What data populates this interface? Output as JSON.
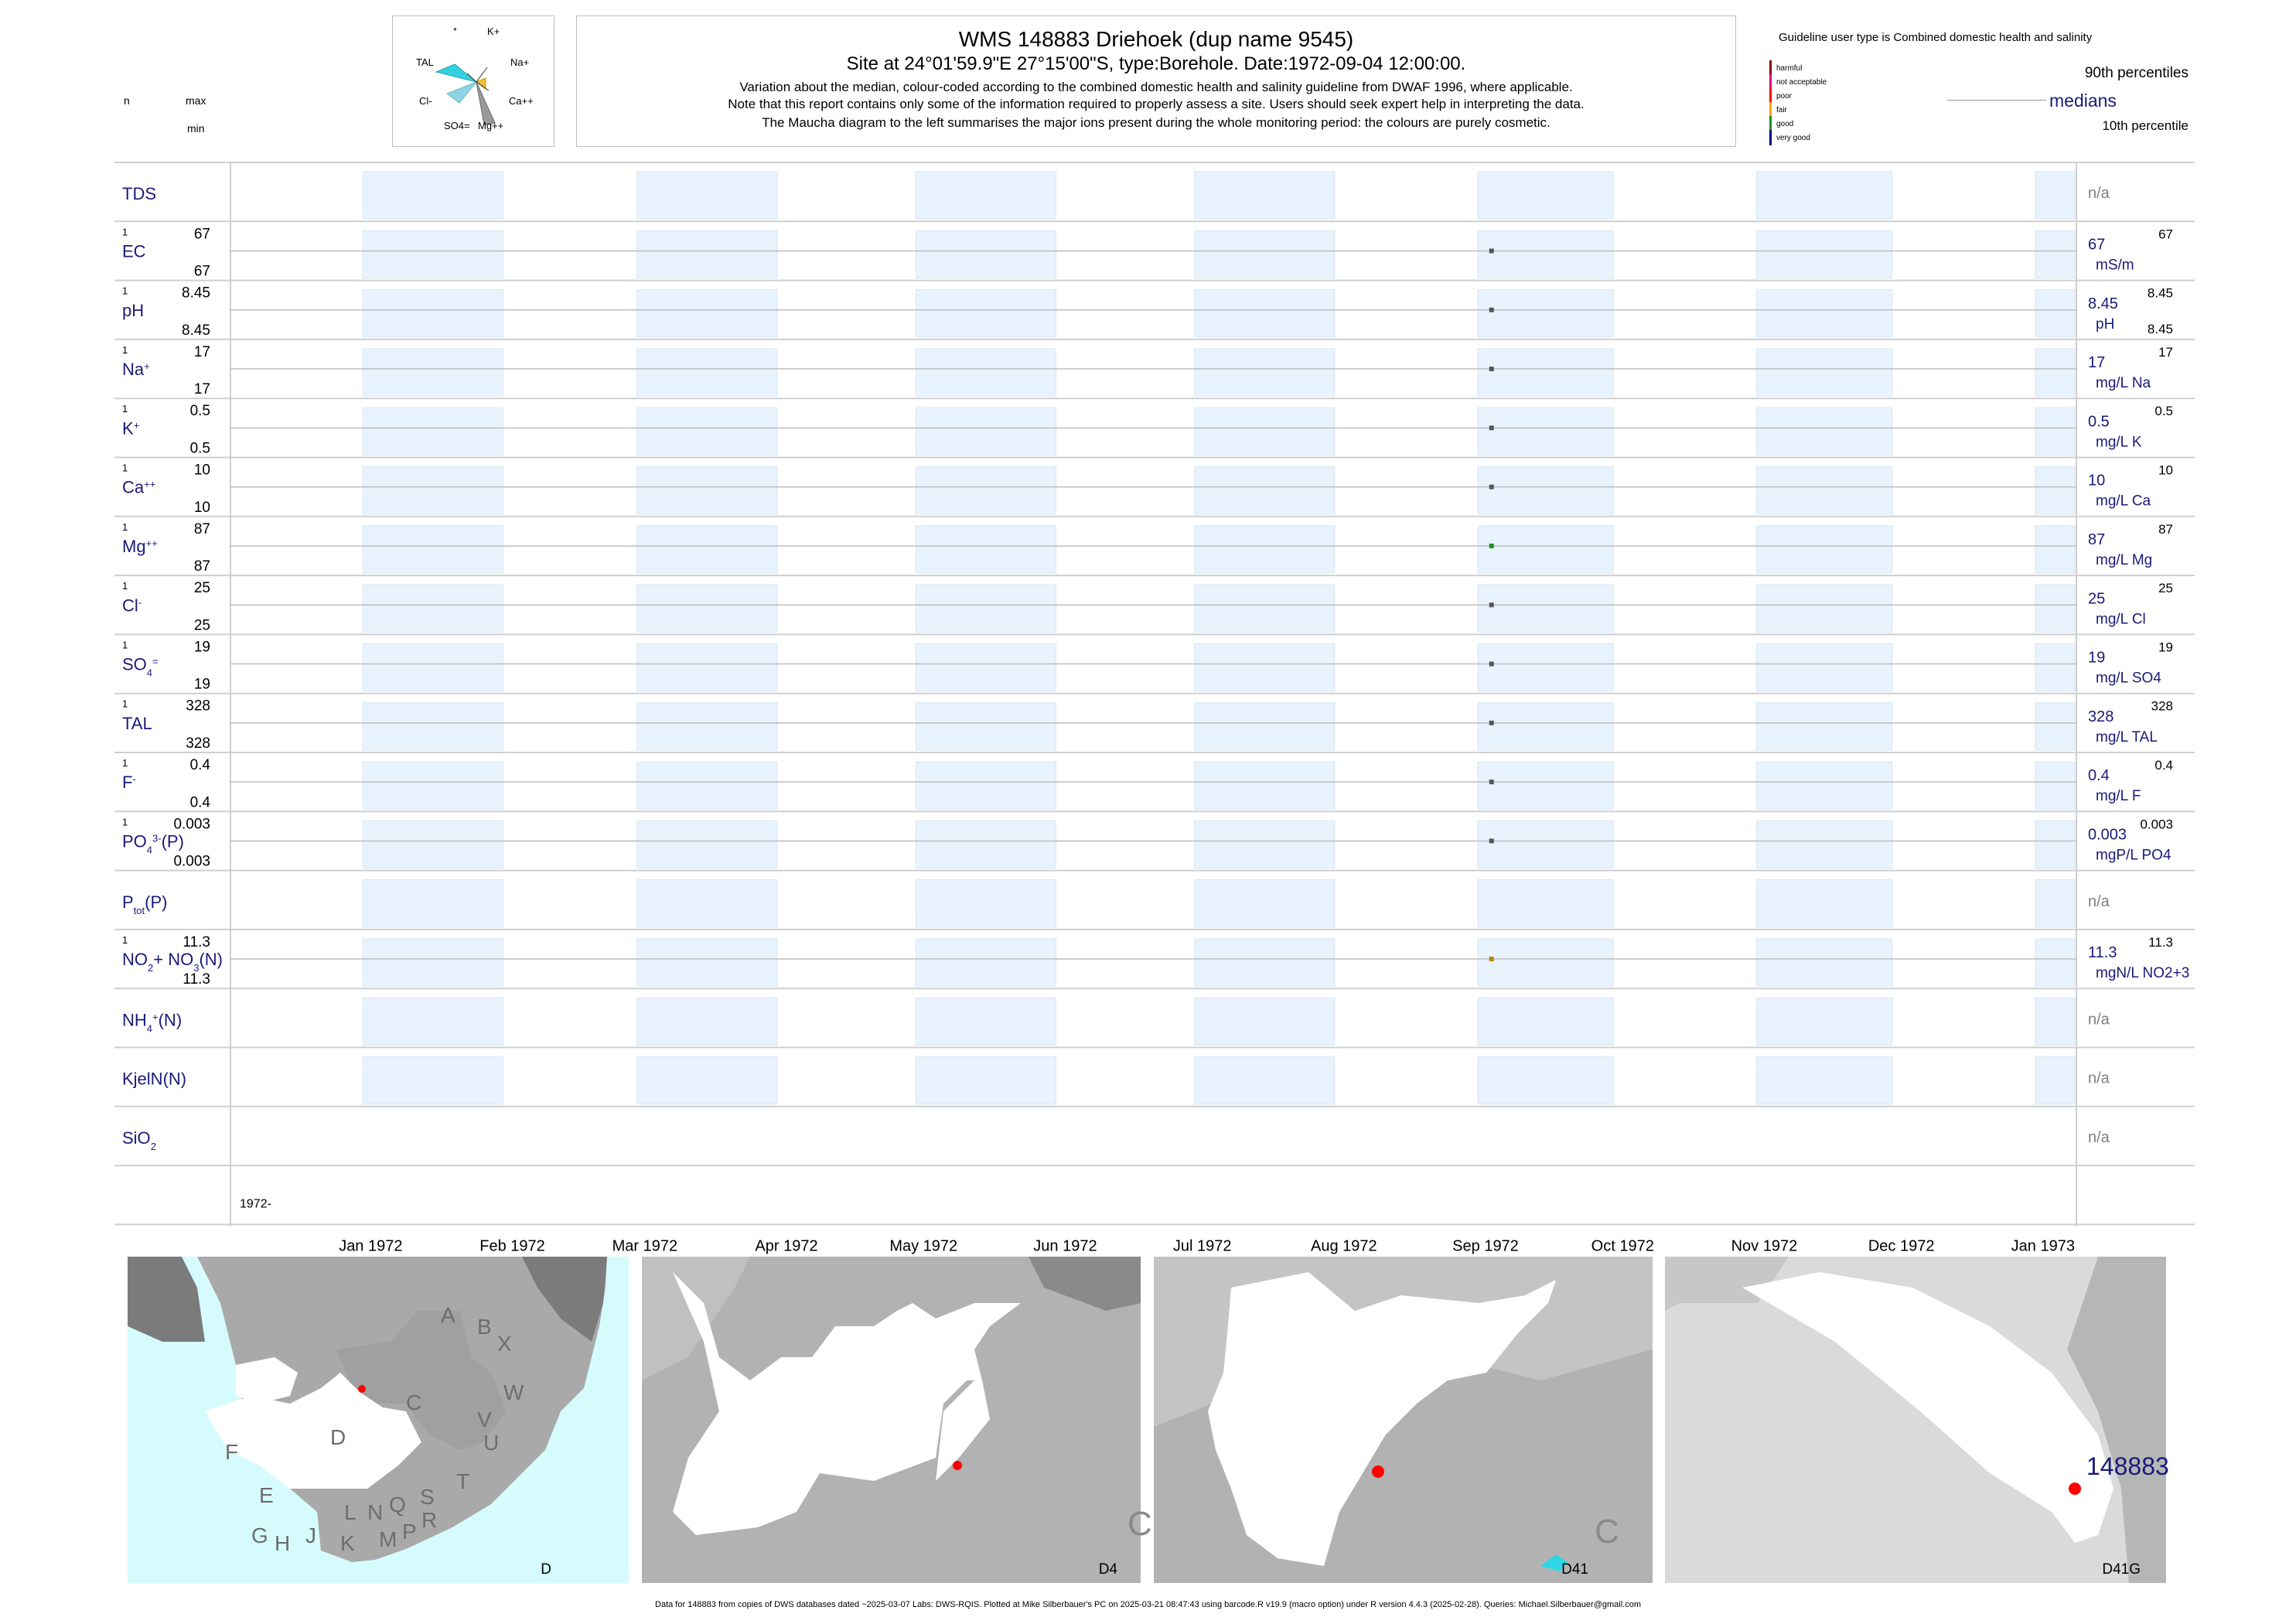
{
  "header": {
    "title": "WMS 148883  Driehoek (dup name 9545)",
    "site": "Site at 24°01'59.9\"E 27°15'00\"S, type:Borehole. Date:1972-09-04 12:00:00.",
    "note1": "Variation about the median,  colour-coded according to the combined domestic health and salinity guideline from DWAF 1996, where applicable.",
    "note2": "Note that this report contains only some of the information required to properly assess a site. Users should seek expert help in interpreting the data.",
    "note3": "The Maucha diagram to the left summarises the major ions present during the whole monitoring period: the colours are purely cosmetic.",
    "left_n": "n",
    "left_max": "max",
    "left_min": "min"
  },
  "maucha": {
    "labels": [
      "*",
      "K+",
      "TAL",
      "Na+",
      "Cl-",
      "Ca++",
      "SO4=",
      "Mg++"
    ]
  },
  "legend": {
    "guideline": "Guideline user type is Combined domestic health and salinity",
    "categories": [
      {
        "name": "harmful",
        "color": "#8b0000"
      },
      {
        "name": "not acceptable",
        "color": "#e0007a"
      },
      {
        "name": "poor",
        "color": "#ff0000"
      },
      {
        "name": "fair",
        "color": "#ffa500"
      },
      {
        "name": "good",
        "color": "#228b22"
      },
      {
        "name": "very good",
        "color": "#00008b"
      }
    ],
    "p90": "90th percentiles",
    "medians": "medians",
    "p10": "10th percentile"
  },
  "chart_data": {
    "type": "scatter",
    "x_axis": {
      "ticks": [
        "Jan 1972",
        "Feb 1972",
        "Mar 1972",
        "Apr 1972",
        "May 1972",
        "Jun 1972",
        "Jul 1972",
        "Aug 1972",
        "Sep 1972",
        "Oct 1972",
        "Nov 1972",
        "Dec 1972",
        "Jan 1973"
      ],
      "start_label": "1972-"
    },
    "sample_date": "1972-09-04",
    "rows": [
      {
        "label": "TDS",
        "n": "",
        "max": "",
        "min": "",
        "median": "",
        "unit": "",
        "p90": "",
        "na": "n/a",
        "color": ""
      },
      {
        "label": "EC",
        "n": "1",
        "max": "67",
        "min": "67",
        "median": "67",
        "unit": "mS/m",
        "p90": "67",
        "na": "",
        "color": "#555555"
      },
      {
        "label": "pH",
        "n": "1",
        "max": "8.45",
        "min": "8.45",
        "median": "8.45",
        "unit": "pH",
        "p90": "8.45",
        "p10": "8.45",
        "na": "",
        "color": "#555555"
      },
      {
        "label": "Na+",
        "n": "1",
        "max": "17",
        "min": "17",
        "median": "17",
        "unit": "mg/L Na",
        "p90": "17",
        "na": "",
        "color": "#555555"
      },
      {
        "label": "K+",
        "n": "1",
        "max": "0.5",
        "min": "0.5",
        "median": "0.5",
        "unit": "mg/L K",
        "p90": "0.5",
        "na": "",
        "color": "#555555"
      },
      {
        "label": "Ca++",
        "n": "1",
        "max": "10",
        "min": "10",
        "median": "10",
        "unit": "mg/L Ca",
        "p90": "10",
        "na": "",
        "color": "#555555"
      },
      {
        "label": "Mg++",
        "n": "1",
        "max": "87",
        "min": "87",
        "median": "87",
        "unit": "mg/L Mg",
        "p90": "87",
        "na": "",
        "color": "#228b22"
      },
      {
        "label": "Cl-",
        "n": "1",
        "max": "25",
        "min": "25",
        "median": "25",
        "unit": "mg/L Cl",
        "p90": "25",
        "na": "",
        "color": "#555555"
      },
      {
        "label": "SO4=",
        "n": "1",
        "max": "19",
        "min": "19",
        "median": "19",
        "unit": "mg/L SO4",
        "p90": "19",
        "na": "",
        "color": "#555555"
      },
      {
        "label": "TAL",
        "n": "1",
        "max": "328",
        "min": "328",
        "median": "328",
        "unit": "mg/L TAL",
        "p90": "328",
        "na": "",
        "color": "#555555"
      },
      {
        "label": "F-",
        "n": "1",
        "max": "0.4",
        "min": "0.4",
        "median": "0.4",
        "unit": "mg/L F",
        "p90": "0.4",
        "na": "",
        "color": "#555555"
      },
      {
        "label": "PO4(P)",
        "n": "1",
        "max": "0.003",
        "min": "0.003",
        "median": "0.003",
        "unit": "mgP/L PO4",
        "p90": "0.003",
        "na": "",
        "color": "#555555"
      },
      {
        "label": "Ptot(P)",
        "n": "",
        "max": "",
        "min": "",
        "median": "",
        "unit": "",
        "p90": "",
        "na": "n/a",
        "color": ""
      },
      {
        "label": "NO2+NO3(N)",
        "n": "1",
        "max": "11.3",
        "min": "11.3",
        "median": "11.3",
        "unit": "mgN/L NO2+3",
        "p90": "11.3",
        "na": "",
        "color": "#b8860b"
      },
      {
        "label": "NH4(N)",
        "n": "",
        "max": "",
        "min": "",
        "median": "",
        "unit": "",
        "p90": "",
        "na": "n/a",
        "color": ""
      },
      {
        "label": "KjelN(N)",
        "n": "",
        "max": "",
        "min": "",
        "median": "",
        "unit": "",
        "p90": "",
        "na": "n/a",
        "color": ""
      },
      {
        "label": "SiO2",
        "n": "",
        "max": "",
        "min": "",
        "median": "",
        "unit": "",
        "p90": "",
        "na": "n/a",
        "color": ""
      }
    ]
  },
  "maps": [
    {
      "caption": "D",
      "letters": [
        "A",
        "B",
        "X",
        "W",
        "C",
        "V",
        "U",
        "D",
        "T",
        "F",
        "E",
        "G",
        "H",
        "J",
        "K",
        "L",
        "M",
        "N",
        "P",
        "Q",
        "R",
        "S"
      ]
    },
    {
      "caption": "D4",
      "letters": [
        "C"
      ]
    },
    {
      "caption": "D41",
      "letters": [
        "C"
      ]
    },
    {
      "caption": "D41G",
      "site": "148883"
    }
  ],
  "footer": "Data for 148883 from copies of DWS databases dated ~2025-03-07 Labs: DWS-RQIS. Plotted at Mike Silberbauer's PC on 2025-03-21 08:47:43 using barcode.R v19.9 (macro option) under R version 4.4.3 (2025-02-28). Queries: Michael.Silberbauer@gmail.com"
}
